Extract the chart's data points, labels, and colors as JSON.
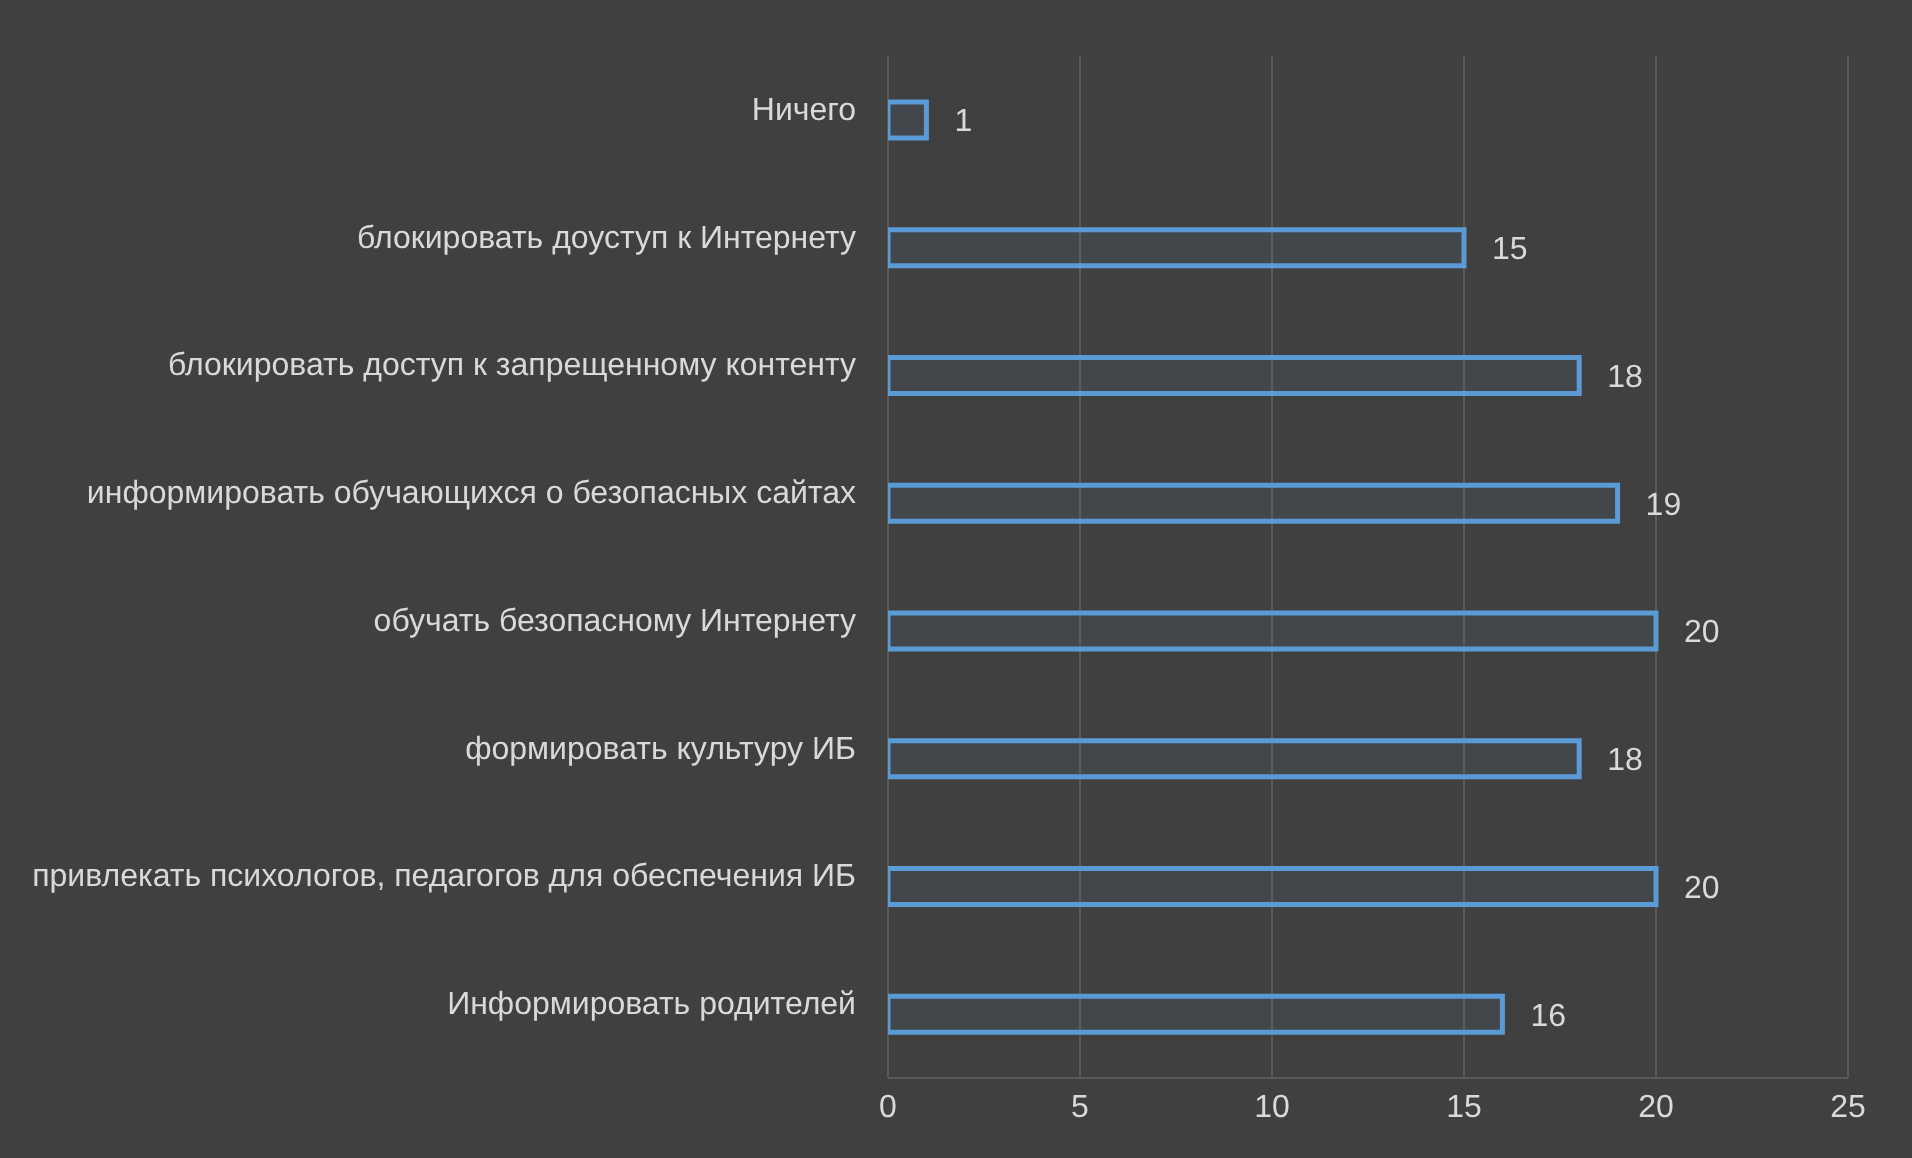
{
  "chart_data": {
    "type": "bar",
    "orientation": "horizontal",
    "categories": [
      "Ничего",
      "блокировать доуступ к Интернету",
      "блокировать доступ к запрещенному контенту",
      "информировать обучающихся о безопасных сайтах",
      "обучать безопасному Интернету",
      "формировать культуру ИБ",
      "привлекать психологов, педагогов для обеспечения ИБ",
      "Информировать родителей"
    ],
    "values": [
      1,
      15,
      18,
      19,
      20,
      18,
      20,
      16
    ],
    "color": "#5b9bd5",
    "xlim": [
      0,
      25
    ],
    "xticks": [
      0,
      5,
      10,
      15,
      20,
      25
    ],
    "grid": "x",
    "data_labels": true,
    "legend": false
  }
}
